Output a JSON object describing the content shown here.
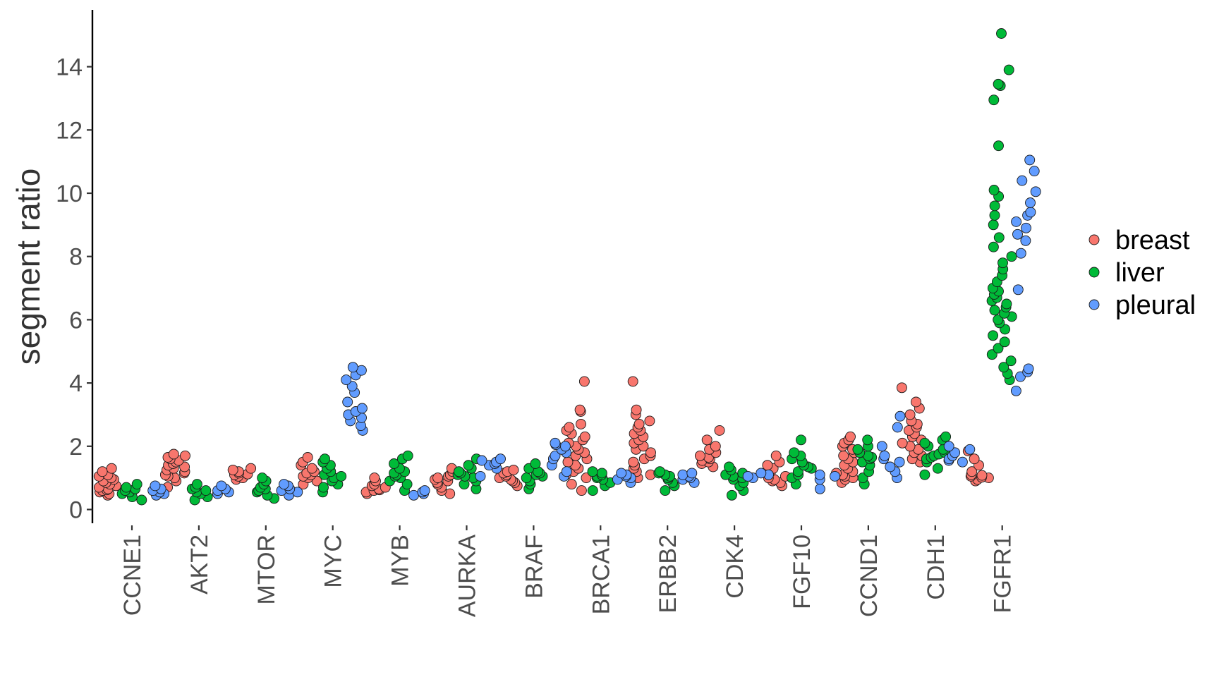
{
  "chart_data": {
    "type": "scatter",
    "subtype": "jittered strip plot",
    "title": "",
    "xlabel": "",
    "ylabel": "segment ratio",
    "ylim": [
      -0.4,
      15.8
    ],
    "yticks": [
      0,
      2,
      4,
      6,
      8,
      10,
      12,
      14
    ],
    "ytick_labels": [
      "0",
      "2",
      "4",
      "6",
      "8",
      "10",
      "12",
      "14"
    ],
    "categories": [
      "CCNE1",
      "AKT2",
      "MTOR",
      "MYC",
      "MYB",
      "AURKA",
      "BRAF",
      "BRCA1",
      "ERBB2",
      "CDK4",
      "FGF10",
      "CCND1",
      "CDH1",
      "FGFR1"
    ],
    "grid": false,
    "legend": {
      "position": "right",
      "entries": [
        "breast",
        "liver",
        "pleural"
      ]
    },
    "colors": {
      "breast": "#F8766D",
      "liver": "#00BA38",
      "pleural": "#619CFF"
    },
    "series": [
      {
        "name": "breast",
        "values": {
          "CCNE1": [
            0.45,
            0.5,
            0.55,
            0.6,
            0.62,
            0.65,
            0.7,
            0.75,
            0.8,
            0.85,
            0.9,
            0.95,
            1.0,
            1.05,
            1.1,
            1.2,
            1.3
          ],
          "AKT2": [
            0.7,
            0.9,
            1.0,
            1.05,
            1.1,
            1.15,
            1.2,
            1.25,
            1.3,
            1.35,
            1.4,
            1.45,
            1.5,
            1.55,
            1.6,
            1.65,
            1.7,
            1.75
          ],
          "MTOR": [
            0.95,
            1.0,
            1.05,
            1.1,
            1.12,
            1.15,
            1.2,
            1.25,
            1.3
          ],
          "MYC": [
            0.8,
            0.9,
            1.0,
            1.05,
            1.1,
            1.15,
            1.2,
            1.3,
            1.4,
            1.5,
            1.65
          ],
          "MYB": [
            0.5,
            0.55,
            0.6,
            0.62,
            0.65,
            0.7,
            0.75,
            0.8,
            0.9,
            1.0
          ],
          "AURKA": [
            0.5,
            0.6,
            0.7,
            0.8,
            0.85,
            0.9,
            0.95,
            1.0,
            1.05,
            1.1,
            1.2,
            1.3
          ],
          "BRAF": [
            0.75,
            0.85,
            0.9,
            0.95,
            1.0,
            1.05,
            1.1,
            1.15,
            1.2,
            1.25
          ],
          "BRCA1": [
            0.6,
            0.8,
            1.0,
            1.1,
            1.2,
            1.3,
            1.4,
            1.5,
            1.6,
            1.7,
            1.8,
            1.9,
            2.0,
            2.1,
            2.2,
            2.3,
            2.4,
            2.5,
            2.6,
            2.7,
            3.1,
            3.15,
            4.05
          ],
          "ERBB2": [
            1.0,
            1.1,
            1.2,
            1.3,
            1.4,
            1.5,
            1.6,
            1.7,
            1.8,
            1.9,
            2.0,
            2.1,
            2.2,
            2.3,
            2.4,
            2.5,
            2.6,
            2.7,
            2.8,
            3.0,
            3.15,
            4.05
          ],
          "CDK4": [
            1.35,
            1.45,
            1.5,
            1.55,
            1.6,
            1.65,
            1.7,
            1.8,
            1.9,
            2.0,
            2.2,
            2.5
          ],
          "FGF10": [
            0.75,
            0.85,
            0.9,
            0.95,
            1.0,
            1.05,
            1.1,
            1.15,
            1.2,
            1.3,
            1.4,
            1.5,
            1.7
          ],
          "CCND1": [
            0.85,
            0.95,
            1.0,
            1.05,
            1.1,
            1.15,
            1.2,
            1.3,
            1.4,
            1.5,
            1.6,
            1.7,
            1.8,
            1.9,
            2.0,
            2.1,
            2.2,
            2.3
          ],
          "CDH1": [
            1.5,
            1.6,
            1.7,
            1.8,
            1.9,
            2.0,
            2.1,
            2.2,
            2.3,
            2.4,
            2.5,
            2.6,
            2.7,
            2.8,
            3.0,
            3.2,
            3.4,
            3.85
          ],
          "FGFR1": [
            0.9,
            0.95,
            1.0,
            1.02,
            1.05,
            1.08,
            1.1,
            1.2,
            1.4,
            1.6,
            1.85
          ]
        }
      },
      {
        "name": "liver",
        "values": {
          "CCNE1": [
            0.3,
            0.4,
            0.5,
            0.55,
            0.6,
            0.65,
            0.7,
            0.8
          ],
          "AKT2": [
            0.3,
            0.4,
            0.5,
            0.55,
            0.6,
            0.65,
            0.7,
            0.8
          ],
          "MTOR": [
            0.35,
            0.45,
            0.55,
            0.6,
            0.65,
            0.7,
            0.8,
            0.9,
            1.0
          ],
          "MYC": [
            0.55,
            0.7,
            0.8,
            0.9,
            1.0,
            1.05,
            1.1,
            1.2,
            1.3,
            1.4,
            1.5,
            1.6
          ],
          "MYB": [
            0.6,
            0.8,
            0.9,
            1.0,
            1.05,
            1.1,
            1.15,
            1.2,
            1.3,
            1.45,
            1.6,
            1.7
          ],
          "AURKA": [
            0.65,
            0.8,
            0.9,
            1.0,
            1.05,
            1.1,
            1.15,
            1.2,
            1.3,
            1.4,
            1.6
          ],
          "BRAF": [
            0.65,
            0.8,
            0.9,
            1.0,
            1.05,
            1.1,
            1.15,
            1.2,
            1.3,
            1.45
          ],
          "BRCA1": [
            0.6,
            0.75,
            0.85,
            0.95,
            1.0,
            1.05,
            1.1,
            1.15,
            1.2
          ],
          "ERBB2": [
            0.6,
            0.75,
            0.85,
            0.95,
            1.0,
            1.05,
            1.1,
            1.15,
            1.2
          ],
          "CDK4": [
            0.45,
            0.6,
            0.75,
            0.85,
            0.95,
            1.0,
            1.05,
            1.1,
            1.15,
            1.25,
            1.35
          ],
          "FGF10": [
            0.8,
            1.0,
            1.1,
            1.2,
            1.3,
            1.35,
            1.4,
            1.5,
            1.6,
            1.7,
            1.8,
            2.2
          ],
          "CCND1": [
            0.8,
            1.0,
            1.2,
            1.4,
            1.5,
            1.6,
            1.65,
            1.7,
            1.8,
            1.9,
            2.0,
            2.2
          ],
          "CDH1": [
            1.1,
            1.3,
            1.5,
            1.6,
            1.65,
            1.7,
            1.75,
            1.8,
            1.9,
            2.0,
            2.1,
            2.2,
            2.3
          ],
          "FGFR1": [
            4.1,
            4.3,
            4.5,
            4.7,
            4.9,
            5.1,
            5.3,
            5.5,
            5.7,
            5.9,
            6.0,
            6.1,
            6.2,
            6.3,
            6.4,
            6.5,
            6.6,
            6.7,
            6.8,
            6.9,
            7.0,
            7.2,
            7.4,
            7.6,
            7.8,
            8.0,
            8.3,
            8.6,
            9.0,
            9.3,
            9.6,
            9.9,
            10.1,
            11.5,
            12.95,
            13.4,
            13.45,
            13.9,
            15.05
          ]
        }
      },
      {
        "name": "pleural",
        "values": {
          "CCNE1": [
            0.45,
            0.5,
            0.55,
            0.6,
            0.65,
            0.75
          ],
          "AKT2": [
            0.5,
            0.55,
            0.6,
            0.65,
            0.75
          ],
          "MTOR": [
            0.45,
            0.55,
            0.6,
            0.65,
            0.75,
            0.8
          ],
          "MYC": [
            2.5,
            2.65,
            2.8,
            2.9,
            3.0,
            3.1,
            3.2,
            3.4,
            3.7,
            3.9,
            4.1,
            4.25,
            4.4,
            4.5
          ],
          "MYB": [
            0.45,
            0.5,
            0.55,
            0.6
          ],
          "AURKA": [
            1.05,
            1.3,
            1.4,
            1.45,
            1.5,
            1.55,
            1.6
          ],
          "BRAF": [
            1.05,
            1.2,
            1.4,
            1.6,
            1.7,
            1.8,
            1.9,
            2.0,
            2.05,
            2.1
          ],
          "BRCA1": [
            0.85,
            0.95,
            1.0,
            1.05,
            1.1,
            1.15
          ],
          "ERBB2": [
            0.85,
            0.95,
            1.0,
            1.05,
            1.1,
            1.15
          ],
          "CDK4": [
            1.0,
            1.05,
            1.1,
            1.15
          ],
          "FGF10": [
            0.65,
            0.95,
            1.05,
            1.1
          ],
          "CCND1": [
            1.0,
            1.2,
            1.35,
            1.5,
            1.6,
            1.7,
            2.0,
            2.6,
            2.95
          ],
          "CDH1": [
            1.5,
            1.55,
            1.6,
            1.7,
            1.8,
            1.9,
            2.0
          ],
          "FGFR1": [
            3.75,
            4.2,
            4.35,
            4.45,
            6.95,
            8.1,
            8.5,
            8.7,
            8.9,
            9.1,
            9.3,
            9.4,
            9.7,
            10.05,
            10.4,
            10.7,
            11.05
          ]
        }
      }
    ]
  }
}
